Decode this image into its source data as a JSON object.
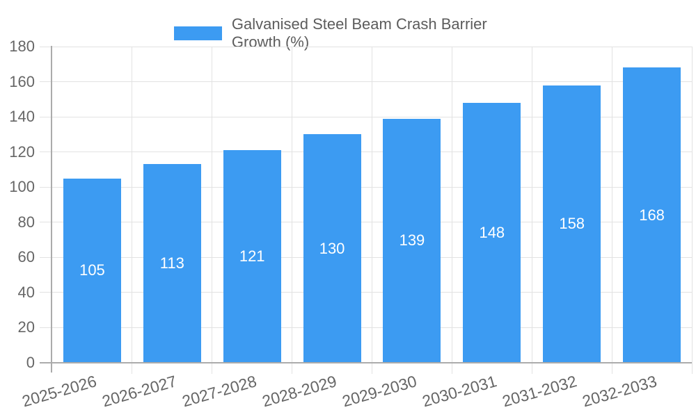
{
  "chart_data": {
    "type": "bar",
    "title": "Galvanised Steel Beam Crash Barrier Growth (%)",
    "categories": [
      "2025-2026",
      "2026-2027",
      "2027-2028",
      "2028-2029",
      "2029-2030",
      "2030-2031",
      "2031-2032",
      "2032-2033"
    ],
    "values": [
      105,
      113,
      121,
      130,
      139,
      148,
      158,
      168
    ],
    "xlabel": "",
    "ylabel": "",
    "ylim": [
      0,
      180
    ],
    "ytick_step": 20,
    "y_tick_labels": [
      "0",
      "20",
      "40",
      "60",
      "80",
      "100",
      "120",
      "140",
      "160",
      "180"
    ],
    "grid": true,
    "legend_position": "top",
    "value_labels": "inside-center"
  },
  "colors": {
    "bar": "#3C9BF2",
    "value_label": "#ffffff",
    "gridline": "#e2e2e2",
    "axis_line": "#ababab",
    "tick_text": "#666666",
    "title_text": "#5c5c5c"
  }
}
